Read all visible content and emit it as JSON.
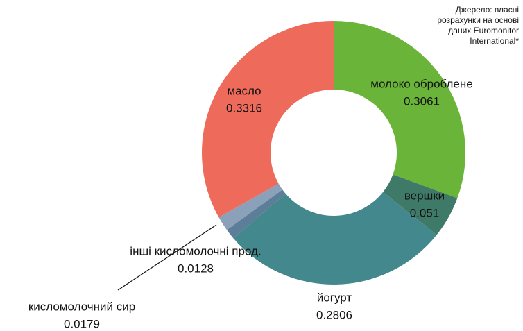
{
  "chart_data": {
    "type": "donut",
    "source": [
      "Джерело: власні",
      "розрахунки на основі",
      "даних Euromonitor",
      "International*"
    ],
    "categories": [
      "молоко оброблене",
      "вершки",
      "йогурт",
      "інші кисломолочні прод.",
      "кисломолочний сир",
      "масло"
    ],
    "values": [
      0.3061,
      0.051,
      0.2806,
      0.0128,
      0.0179,
      0.3316
    ],
    "colors": [
      "#6ab43a",
      "#3f7a68",
      "#42888c",
      "#5d7e98",
      "#8ba1b9",
      "#ee6b5b"
    ]
  }
}
